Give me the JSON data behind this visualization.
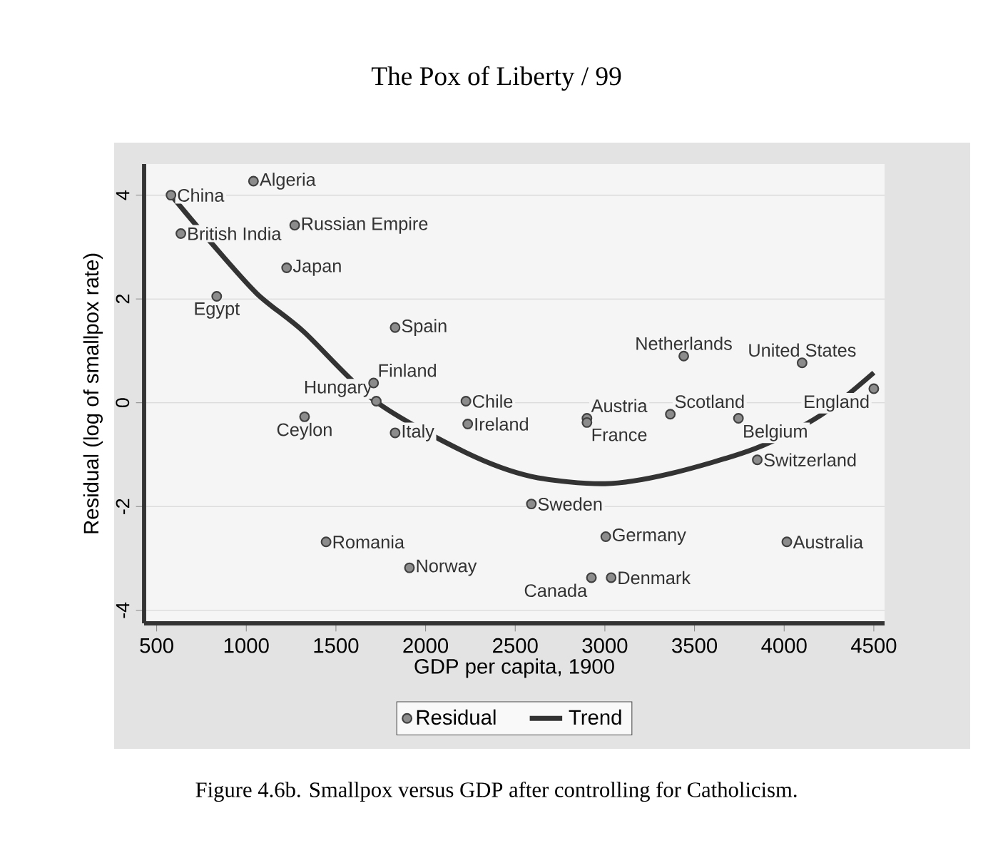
{
  "chart_data": {
    "type": "scatter",
    "xlabel": "GDP per capita, 1900",
    "ylabel": "Residual (log of smallpox rate)",
    "xlim": [
      430,
      4560
    ],
    "ylim": [
      -4.25,
      4.6
    ],
    "xticks": [
      500,
      1000,
      1500,
      2000,
      2500,
      3000,
      3500,
      4000,
      4500
    ],
    "yticks": [
      -4,
      -2,
      0,
      2,
      4
    ],
    "grid": "y",
    "legend": "bottom",
    "series": [
      {
        "name": "Residual",
        "marker": "circle",
        "color": "#8c8c8c",
        "x": [
          580,
          1040,
          635,
          1270,
          1225,
          835,
          1830,
          1710,
          1725,
          1325,
          1830,
          2225,
          2235,
          2900,
          2900,
          3440,
          4100,
          3365,
          3745,
          4500,
          3850,
          2590,
          3005,
          4015,
          1445,
          1910,
          2925,
          3035
        ],
        "values": [
          4.0,
          4.27,
          3.26,
          3.42,
          2.6,
          2.05,
          1.45,
          0.38,
          0.03,
          -0.27,
          -0.58,
          0.03,
          -0.41,
          -0.3,
          -0.38,
          0.9,
          0.77,
          -0.22,
          -0.3,
          0.27,
          -1.1,
          -1.95,
          -2.58,
          -2.68,
          -2.68,
          -3.18,
          -3.37,
          -3.37
        ]
      },
      {
        "name": "Trend",
        "type": "line",
        "marker": "none",
        "color": "#333333",
        "x": [
          580,
          800,
          1060,
          1320,
          1720,
          2225,
          2590,
          3000,
          3360,
          3840,
          4200,
          4500
        ],
        "values": [
          4.0,
          3.1,
          2.1,
          1.37,
          0.03,
          -0.96,
          -1.42,
          -1.56,
          -1.37,
          -0.88,
          -0.25,
          0.58
        ]
      }
    ],
    "annotations": [
      "The Pox of Liberty / 99",
      "Figure 4.6b. Smallpox versus GDP after controlling for Catholicism.",
      {
        "text": "China",
        "x": 580,
        "y": 4.0
      },
      {
        "text": "Algeria",
        "x": 1040,
        "y": 4.27
      },
      {
        "text": "British India",
        "x": 635,
        "y": 3.26
      },
      {
        "text": "Russian Empire",
        "x": 1270,
        "y": 3.42
      },
      {
        "text": "Japan",
        "x": 1225,
        "y": 2.6
      },
      {
        "text": "Egypt",
        "x": 835,
        "y": 2.05
      },
      {
        "text": "Spain",
        "x": 1830,
        "y": 1.45
      },
      {
        "text": "Finland",
        "x": 1710,
        "y": 0.38
      },
      {
        "text": "Hungary",
        "x": 1725,
        "y": 0.03
      },
      {
        "text": "Ceylon",
        "x": 1325,
        "y": -0.27
      },
      {
        "text": "Italy",
        "x": 1830,
        "y": -0.58
      },
      {
        "text": "Chile",
        "x": 2225,
        "y": 0.03
      },
      {
        "text": "Ireland",
        "x": 2235,
        "y": -0.41
      },
      {
        "text": "Austria",
        "x": 2900,
        "y": -0.3
      },
      {
        "text": "France",
        "x": 2900,
        "y": -0.38
      },
      {
        "text": "Netherlands",
        "x": 3440,
        "y": 0.9
      },
      {
        "text": "United States",
        "x": 4100,
        "y": 0.77
      },
      {
        "text": "Scotland",
        "x": 3365,
        "y": -0.22
      },
      {
        "text": "Belgium",
        "x": 3745,
        "y": -0.3
      },
      {
        "text": "England",
        "x": 4500,
        "y": 0.27
      },
      {
        "text": "Switzerland",
        "x": 3850,
        "y": -1.1
      },
      {
        "text": "Sweden",
        "x": 2590,
        "y": -1.95
      },
      {
        "text": "Germany",
        "x": 3005,
        "y": -2.58
      },
      {
        "text": "Australia",
        "x": 4015,
        "y": -2.68
      },
      {
        "text": "Romania",
        "x": 1445,
        "y": -2.68
      },
      {
        "text": "Norway",
        "x": 1910,
        "y": -3.18
      },
      {
        "text": "Canada",
        "x": 2925,
        "y": -3.37
      },
      {
        "text": "Denmark",
        "x": 3035,
        "y": -3.37
      }
    ]
  }
}
